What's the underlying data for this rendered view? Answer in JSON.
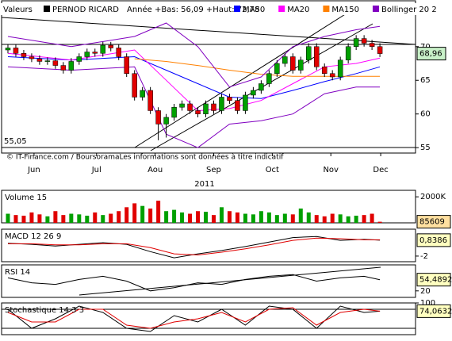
{
  "chart_data": [
    {
      "type": "candlestick",
      "label": "Valeurs",
      "title": "PERNOD RICARD",
      "subtitle": "Année +Bas: 56,09 +Haut: 72,78",
      "x_label": "2011",
      "source": "© IT-Finance.com / BoursoramaLes informations sont données à titre indicatif",
      "up_color": "#00a000",
      "down_color": "#e00000",
      "open": [
        69.5,
        69.8,
        69.0,
        68.5,
        68.2,
        67.8,
        67.9,
        67.2,
        66.5,
        67.8,
        68.5,
        69.2,
        69.0,
        70.2,
        69.8,
        68.5,
        66.0,
        62.5,
        63.5,
        60.5,
        58.5,
        59.5,
        61.0,
        61.5,
        60.5,
        60.0,
        61.5,
        60.5,
        62.5,
        62.0,
        60.5,
        62.8,
        63.5,
        64.5,
        66.0,
        67.5,
        68.5,
        66.5,
        68.0,
        70.0,
        67.0,
        66.0,
        65.5,
        68.0,
        70.0,
        71.2,
        70.5,
        70.0
      ],
      "high": [
        70.3,
        70.3,
        69.5,
        69.0,
        68.7,
        68.4,
        68.4,
        67.7,
        68.3,
        69.0,
        69.7,
        69.7,
        70.7,
        70.7,
        70.3,
        69.0,
        66.5,
        64.0,
        64.0,
        61.0,
        60.0,
        61.5,
        62.0,
        62.0,
        61.0,
        62.0,
        62.0,
        63.0,
        63.0,
        62.5,
        63.3,
        64.0,
        65.0,
        66.5,
        68.0,
        69.0,
        69.0,
        68.5,
        70.5,
        70.5,
        67.5,
        66.5,
        68.5,
        70.5,
        71.7,
        71.7,
        71.0,
        70.5
      ],
      "low": [
        69.0,
        68.5,
        68.0,
        67.7,
        67.3,
        67.3,
        66.7,
        66.0,
        66.0,
        67.3,
        68.0,
        68.5,
        68.5,
        69.3,
        68.0,
        65.5,
        62.0,
        62.0,
        60.0,
        56.1,
        56.5,
        59.0,
        60.5,
        60.0,
        59.5,
        59.5,
        60.0,
        60.0,
        61.5,
        60.0,
        60.0,
        62.3,
        63.0,
        64.0,
        65.5,
        67.0,
        66.0,
        66.0,
        67.5,
        66.5,
        65.5,
        65.0,
        65.0,
        67.5,
        69.5,
        70.0,
        69.5,
        68.46
      ],
      "close": [
        69.8,
        69.0,
        68.5,
        68.2,
        67.8,
        67.9,
        67.2,
        66.5,
        67.8,
        68.5,
        69.2,
        69.0,
        70.2,
        69.8,
        68.5,
        66.0,
        62.5,
        63.5,
        60.5,
        58.5,
        59.5,
        61.0,
        61.5,
        60.5,
        60.0,
        61.5,
        60.5,
        62.5,
        62.0,
        60.5,
        62.8,
        63.5,
        64.5,
        66.0,
        67.5,
        68.5,
        66.5,
        68.0,
        70.0,
        67.0,
        66.0,
        65.5,
        68.0,
        70.0,
        71.2,
        70.5,
        70.0,
        68.96
      ],
      "last_label": "68,96",
      "annotation": {
        "value": 55.05,
        "label": "55,05"
      },
      "series": [
        {
          "name": "MA50",
          "color": "#0000ff",
          "x": [
            0,
            8,
            16,
            20,
            24,
            28,
            32,
            36,
            40,
            44,
            47
          ],
          "values": [
            68.5,
            68.0,
            68.5,
            66.5,
            64.5,
            62.5,
            62.3,
            63.5,
            64.8,
            66.0,
            67.0
          ]
        },
        {
          "name": "MA20",
          "color": "#ff00ff",
          "x": [
            0,
            8,
            16,
            20,
            24,
            28,
            32,
            36,
            40,
            44,
            47
          ],
          "values": [
            69.0,
            68.0,
            69.5,
            65.0,
            60.5,
            60.8,
            62.0,
            64.5,
            67.0,
            67.5,
            68.3
          ]
        },
        {
          "name": "MA150",
          "color": "#ff8000",
          "x": [
            16,
            20,
            24,
            28,
            32,
            36,
            40,
            47
          ],
          "values": [
            68.2,
            67.8,
            67.2,
            66.5,
            65.9,
            65.6,
            65.6,
            65.6
          ]
        },
        {
          "name": "Bollinger 20 2",
          "color": "#8000c0",
          "x": [
            0,
            8,
            16,
            20,
            24,
            28,
            32,
            36,
            40,
            44,
            47
          ],
          "values": [
            71.5,
            70.0,
            71.5,
            73.5,
            70.0,
            64.0,
            65.5,
            70.0,
            71.5,
            72.5,
            73.0
          ]
        }
      ],
      "band_lower": {
        "color": "#8000c0",
        "x": [
          0,
          8,
          16,
          20,
          24,
          28,
          32,
          36,
          40,
          44,
          47
        ],
        "values": [
          67.0,
          66.5,
          67.0,
          57.0,
          55.0,
          58.5,
          59.0,
          60.0,
          63.0,
          64.0,
          64.0
        ]
      },
      "xlim": [
        -0.8,
        51.5
      ],
      "ylim": [
        54.2,
        76.8
      ],
      "yticks": [
        55,
        60,
        65,
        70
      ],
      "xticks": [
        {
          "value": 3.3,
          "label": "Jun"
        },
        {
          "value": 11.2,
          "label": "Jul"
        },
        {
          "value": 18.6,
          "label": "Aou"
        },
        {
          "value": 26,
          "label": "Sep"
        },
        {
          "value": 33.4,
          "label": "Oct"
        },
        {
          "value": 40.8,
          "label": "Nov"
        },
        {
          "value": 47.1,
          "label": "Dec"
        }
      ]
    },
    {
      "type": "bar",
      "title": "Volume 15",
      "xlim": [
        -0.8,
        51.5
      ],
      "ylim": [
        0,
        2500
      ],
      "yticks": [
        {
          "value": 2000,
          "label": "2000K"
        }
      ],
      "values": [
        700,
        600,
        550,
        800,
        650,
        500,
        900,
        600,
        700,
        650,
        550,
        800,
        600,
        700,
        900,
        1200,
        1500,
        1300,
        1100,
        1700,
        900,
        1000,
        800,
        700,
        900,
        850,
        600,
        1200,
        900,
        800,
        700,
        650,
        900,
        800,
        600,
        700,
        650,
        1100,
        800,
        600,
        500,
        700,
        650,
        500,
        550,
        600,
        700,
        85.609
      ],
      "value_labels": [
        null,
        null,
        null,
        null,
        null,
        null,
        null,
        null,
        null,
        null,
        null,
        null,
        null,
        null,
        null,
        null,
        null,
        null,
        null,
        null,
        null,
        null,
        null,
        null,
        null,
        null,
        null,
        null,
        null,
        null,
        null,
        null,
        null,
        null,
        null,
        null,
        null,
        null,
        null,
        null,
        null,
        null,
        null,
        null,
        null,
        null,
        null,
        "85609"
      ]
    },
    {
      "type": "line",
      "title": "MACD 12 26 9",
      "xlim": [
        -0.8,
        51.5
      ],
      "ylim": [
        -3,
        2.8
      ],
      "yticks": [
        -2
      ],
      "last_label": "0,8386",
      "series": [
        {
          "color": "#000000",
          "x": [
            0,
            3,
            6,
            9,
            12,
            15,
            18,
            21,
            24,
            27,
            30,
            33,
            36,
            39,
            42,
            45,
            47
          ],
          "values": [
            0.3,
            0.1,
            -0.2,
            0.1,
            0.4,
            0.1,
            -1.2,
            -2.3,
            -1.6,
            -1.0,
            -0.3,
            0.5,
            1.3,
            1.5,
            0.8,
            1.0,
            0.8386
          ]
        },
        {
          "color": "#e00000",
          "x": [
            0,
            3,
            6,
            9,
            12,
            15,
            18,
            21,
            24,
            27,
            30,
            33,
            36,
            39,
            42,
            45,
            47
          ],
          "values": [
            0.2,
            0.2,
            0,
            0,
            0.2,
            0.2,
            -0.5,
            -1.6,
            -1.8,
            -1.3,
            -0.7,
            0,
            0.8,
            1.2,
            1.1,
            0.9,
            0.9
          ]
        }
      ]
    },
    {
      "type": "line",
      "title": "RSI 14",
      "xlim": [
        -0.8,
        51.5
      ],
      "ylim": [
        0,
        100
      ],
      "yticks": [
        20
      ],
      "last_label": "54,4892",
      "series": [
        {
          "color": "#000000",
          "x": [
            0,
            3,
            6,
            9,
            12,
            15,
            18,
            21,
            24,
            27,
            30,
            33,
            36,
            39,
            42,
            45,
            47
          ],
          "values": [
            60,
            45,
            40,
            55,
            65,
            50,
            20,
            30,
            45,
            40,
            55,
            65,
            70,
            50,
            60,
            65,
            54.4892
          ]
        }
      ]
    },
    {
      "type": "line",
      "title": "Stochastique 14 3 3",
      "xlim": [
        -0.8,
        51.5
      ],
      "ylim": [
        0,
        100
      ],
      "yticks": [
        100
      ],
      "last_label": "74,0632",
      "series": [
        {
          "color": "#000000",
          "x": [
            0,
            3,
            6,
            9,
            12,
            15,
            18,
            21,
            24,
            27,
            30,
            33,
            36,
            39,
            42,
            45,
            47
          ],
          "values": [
            80,
            20,
            50,
            90,
            70,
            20,
            10,
            60,
            40,
            80,
            30,
            90,
            80,
            20,
            90,
            70,
            74.0632
          ]
        },
        {
          "color": "#e00000",
          "x": [
            0,
            3,
            6,
            9,
            12,
            15,
            18,
            21,
            24,
            27,
            30,
            33,
            36,
            39,
            42,
            45,
            47
          ],
          "values": [
            70,
            40,
            40,
            80,
            80,
            30,
            20,
            40,
            50,
            70,
            40,
            80,
            85,
            30,
            70,
            80,
            74
          ]
        }
      ]
    }
  ]
}
